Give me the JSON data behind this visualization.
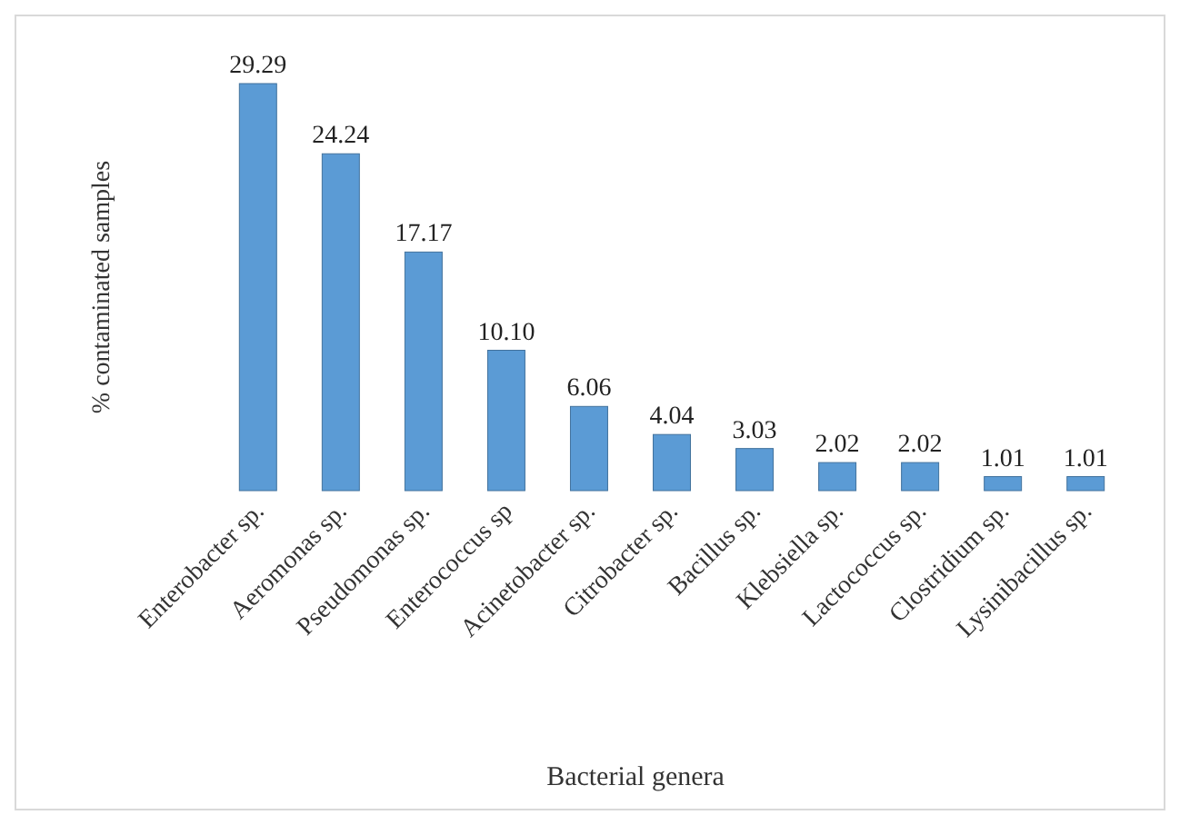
{
  "chart_data": {
    "type": "bar",
    "xlabel": "Bacterial genera",
    "ylabel": "% contaminated samples",
    "categories": [
      "Enterobacter sp.",
      "Aeromonas sp.",
      "Pseudomonas sp.",
      "Enterococcus sp",
      "Acinetobacter sp.",
      "Citrobacter sp.",
      "Bacillus sp.",
      "Klebsiella sp.",
      "Lactococcus sp.",
      "Clostridium sp.",
      "Lysinibacillus sp."
    ],
    "values": [
      29.29,
      24.24,
      17.17,
      10.1,
      6.06,
      4.04,
      3.03,
      2.02,
      2.02,
      1.01,
      1.01
    ],
    "value_labels": [
      "29.29",
      "24.24",
      "17.17",
      "10.10",
      "6.06",
      "4.04",
      "3.03",
      "2.02",
      "2.02",
      "1.01",
      "1.01"
    ],
    "color": "#5b9bd5"
  }
}
